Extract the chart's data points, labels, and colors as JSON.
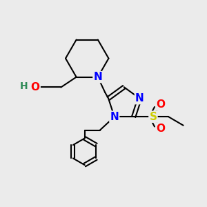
{
  "bg_color": "#ebebeb",
  "atom_colors": {
    "N": "#0000ff",
    "O": "#ff0000",
    "S": "#cccc00",
    "H_O": "#2e8b57",
    "C": "#000000"
  },
  "bond_color": "#000000",
  "bond_width": 1.5,
  "font_size_atoms": 11,
  "font_size_small": 10
}
